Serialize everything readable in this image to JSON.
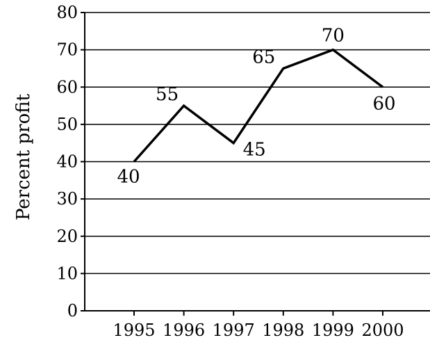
{
  "chart_data": {
    "type": "line",
    "title": "",
    "xlabel": "",
    "ylabel": "Percent profit",
    "x": [
      "1995",
      "1996",
      "1997",
      "1998",
      "1999",
      "2000"
    ],
    "series": [
      {
        "values": [
          40,
          55,
          45,
          65,
          70,
          60
        ]
      }
    ],
    "data_labels": [
      "40",
      "55",
      "45",
      "65",
      "70",
      "60"
    ],
    "y_ticks": [
      "0",
      "10",
      "20",
      "30",
      "40",
      "50",
      "60",
      "70",
      "80"
    ],
    "ylim": [
      0,
      80
    ],
    "grid": "horizontal",
    "legend": "none",
    "line_color": "#000000"
  }
}
